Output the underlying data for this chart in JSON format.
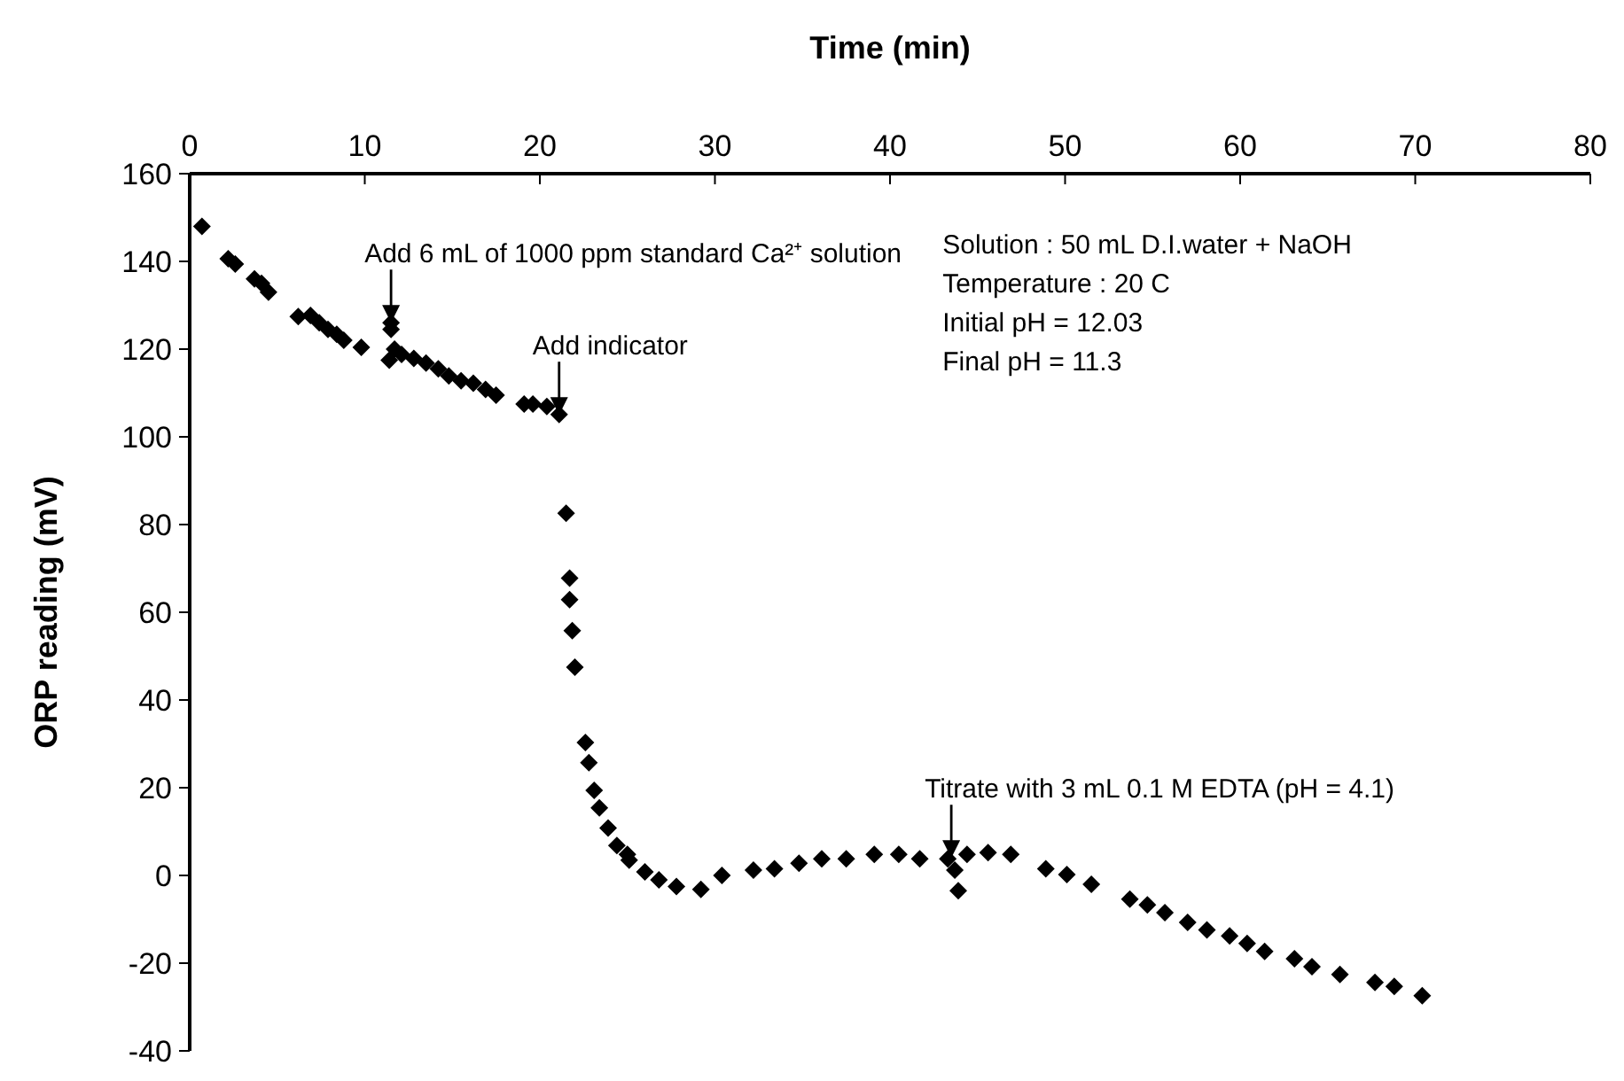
{
  "chart_data": {
    "type": "scatter",
    "xlabel": "Time (min)",
    "ylabel": "ORP reading (mV)",
    "xlim": [
      0,
      80
    ],
    "ylim": [
      -40,
      160
    ],
    "xticks": [
      0,
      10,
      20,
      30,
      40,
      50,
      60,
      70,
      80
    ],
    "yticks": [
      -40,
      -20,
      0,
      20,
      40,
      60,
      80,
      100,
      120,
      140,
      160
    ],
    "grid": false,
    "marker": "diamond",
    "series": [
      {
        "color": "#000000",
        "x": [
          0.7,
          2.2,
          2.6,
          3.7,
          4.1,
          4.5,
          6.2,
          6.9,
          7.4,
          7.9,
          8.4,
          8.8,
          9.8,
          11.5,
          11.5,
          11.4,
          11.7,
          12.1,
          12.8,
          13.5,
          14.2,
          14.8,
          15.5,
          16.2,
          16.9,
          17.5,
          19.1,
          19.6,
          20.4,
          21.1,
          21.5,
          21.7,
          21.7,
          21.85,
          22.0,
          22.6,
          22.8,
          23.1,
          23.4,
          23.9,
          24.4,
          25.0,
          25.1,
          26.0,
          26.8,
          27.8,
          29.2,
          30.4,
          32.2,
          33.4,
          34.8,
          36.1,
          37.5,
          39.1,
          40.5,
          41.7,
          43.3,
          43.7,
          43.9,
          44.4,
          45.6,
          46.9,
          48.9,
          50.1,
          51.5,
          53.7,
          54.7,
          55.7,
          57.0,
          58.1,
          59.4,
          60.4,
          61.4,
          63.1,
          64.1,
          65.7,
          67.7,
          68.8,
          70.4
        ],
        "values": [
          148,
          140.6,
          139.4,
          136,
          135,
          133,
          127.4,
          127.7,
          126,
          124.5,
          123.4,
          122,
          120.4,
          126,
          124.5,
          117.5,
          120,
          118.8,
          117.9,
          116.8,
          115.5,
          113.9,
          112.8,
          112.2,
          110.8,
          109.5,
          107.5,
          107.5,
          106.9,
          105.1,
          82.6,
          67.8,
          62.9,
          55.8,
          47.5,
          30.3,
          25.7,
          19.4,
          15.4,
          10.8,
          6.8,
          4.8,
          3.5,
          0.8,
          -1,
          -2.5,
          -3.2,
          0,
          1.2,
          1.5,
          2.8,
          3.8,
          3.8,
          4.8,
          4.8,
          3.8,
          3.8,
          1.2,
          -3.5,
          4.8,
          5.2,
          4.8,
          1.5,
          0.2,
          -2,
          -5.4,
          -6.7,
          -8.5,
          -10.7,
          -12.4,
          -13.8,
          -15.5,
          -17.3,
          -19,
          -20.8,
          -22.6,
          -24.4,
          -25.3,
          -27.4
        ]
      }
    ],
    "annotations": [
      {
        "text": "Add 6 mL of 1000 ppm standard Ca²⁺ solution",
        "x": 11.5,
        "y": 126
      },
      {
        "text": "Add  indicator",
        "x": 21.1,
        "y": 105
      },
      {
        "text": "Titrate with 3 mL 0.1 M EDTA (pH = 4.1)",
        "x": 43.5,
        "y": 4
      },
      "Solution : 50 mL D.I.water + NaOH",
      "Temperature : 20 C",
      "Initial pH = 12.03",
      "Final pH = 11.3"
    ]
  }
}
